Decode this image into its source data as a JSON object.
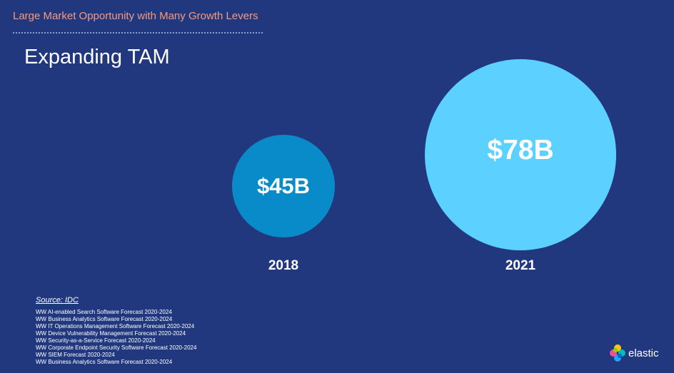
{
  "header": {
    "kicker": "Large Market Opportunity with Many Growth Levers",
    "title": "Expanding TAM"
  },
  "bubbles": [
    {
      "value_label": "$45B",
      "year": "2018",
      "color": "#0a8bc9"
    },
    {
      "value_label": "$78B",
      "year": "2021",
      "color": "#5cd1ff"
    }
  ],
  "footer": {
    "source_label": "Source: IDC",
    "sources": [
      "WW AI-enabled Search Software Forecast 2020-2024",
      "WW Business Analytics Software Forecast 2020-2024",
      "WW IT Operations Management Software Forecast 2020-2024",
      "WW Device Vulnerability Management Forecast 2020-2024",
      "WW Security-as-a-Service Forecast 2020-2024",
      "WW Corporate Endpoint Security Software Forecast 2020-2024",
      "WW SIEM Forecast 2020-2024",
      "WW Business Analytics Software Forecast 2020-2024"
    ]
  },
  "brand": {
    "name": "elastic",
    "icon": "elastic-logo-icon"
  },
  "colors": {
    "background": "#21387f",
    "kicker": "#f29b85"
  }
}
